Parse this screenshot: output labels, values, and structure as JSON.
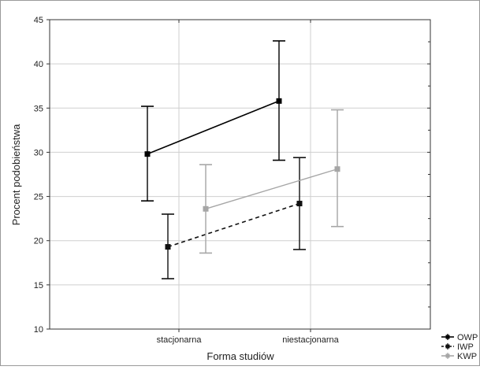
{
  "chart_data": {
    "type": "line",
    "xlabel": "Forma studiów",
    "ylabel": "Procent podobieństwa",
    "categories": [
      "stacjonarna",
      "niestacjonarna"
    ],
    "ylim": [
      10,
      45
    ],
    "yticks": [
      10,
      15,
      20,
      25,
      30,
      35,
      40,
      45
    ],
    "grid": true,
    "legend_position": "bottom-right",
    "series": [
      {
        "name": "OWP",
        "color": "#000000",
        "line_style": "solid",
        "marker": "square",
        "values": [
          29.8,
          35.8
        ],
        "lower": [
          24.5,
          29.1
        ],
        "upper": [
          35.2,
          42.6
        ]
      },
      {
        "name": "IWP",
        "color": "#111111",
        "line_style": "dashed",
        "marker": "square",
        "values": [
          19.3,
          24.2
        ],
        "lower": [
          15.7,
          19.0
        ],
        "upper": [
          23.0,
          29.4
        ]
      },
      {
        "name": "KWP",
        "color": "#a6a6a6",
        "line_style": "solid",
        "marker": "square",
        "values": [
          23.6,
          28.1
        ],
        "lower": [
          18.6,
          21.6
        ],
        "upper": [
          28.6,
          34.8
        ]
      }
    ]
  }
}
